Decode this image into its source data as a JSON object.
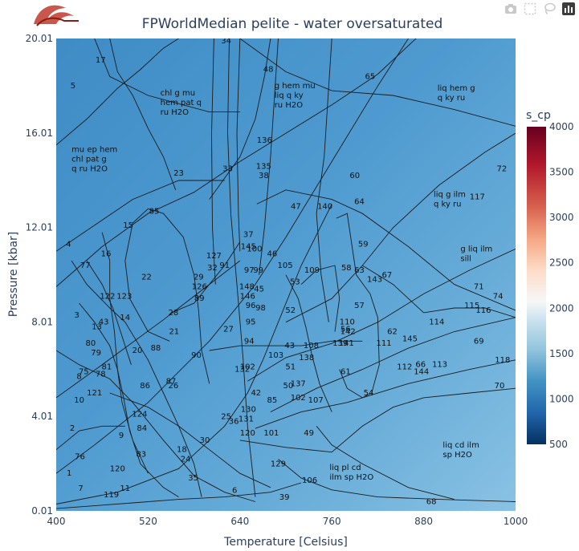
{
  "toolbar": {
    "icons": [
      "camera-icon",
      "box-select-icon",
      "lasso-icon",
      "bar-chart-logo-icon"
    ]
  },
  "chart_data": {
    "type": "heatmap",
    "title": "FPWorldMedian pelite - water oversaturated",
    "xlabel": "Temperature [Celsius]",
    "ylabel": "Pressure [kbar]",
    "xlim": [
      400,
      1000
    ],
    "ylim": [
      0.01,
      20.01
    ],
    "xticks": [
      400,
      520,
      640,
      760,
      880,
      1000
    ],
    "xtick_labels": [
      "400",
      "520",
      "640",
      "760",
      "880",
      "1000"
    ],
    "yticks": [
      0.01,
      4.01,
      8.01,
      12.01,
      16.01,
      20.01
    ],
    "ytick_labels": [
      "0.01",
      "4.01",
      "8.01",
      "12.01",
      "16.01",
      "20.01"
    ],
    "colorbar": {
      "title": "s_cp",
      "range": [
        500,
        4000
      ],
      "ticks": [
        500,
        1000,
        1500,
        2000,
        2500,
        3000,
        3500,
        4000
      ],
      "colorscale": [
        "#053061",
        "#2166ac",
        "#4393c3",
        "#92c5de",
        "#d1e5f0",
        "#f7f7f7",
        "#fddbc7",
        "#f4a582",
        "#d6604d",
        "#b2182b",
        "#67001f"
      ]
    },
    "grid": false,
    "field_value_range": [
      1400,
      1750
    ],
    "assemblage_labels": [
      {
        "text": "chl g mu\nhem pat q\nru H2O",
        "x": 536,
        "y": 17.6
      },
      {
        "text": "g hem mu\nliq q ky\nru H2O",
        "x": 685,
        "y": 17.9
      },
      {
        "text": "liq hem g\nq ky ru",
        "x": 898,
        "y": 17.8
      },
      {
        "text": "mu ep hem\nchl pat g\nq ru H2O",
        "x": 420,
        "y": 15.2
      },
      {
        "text": "liq g ilm\nq ky ru",
        "x": 893,
        "y": 13.3
      },
      {
        "text": "g liq ilm\nsill",
        "x": 928,
        "y": 11.0
      },
      {
        "text": "liq cd ilm\nsp H2O",
        "x": 905,
        "y": 2.7
      },
      {
        "text": "liq pl cd\nilm sp H2O",
        "x": 757,
        "y": 1.75
      }
    ],
    "field_numbers": [
      {
        "n": "34",
        "x": 622,
        "y": 19.9
      },
      {
        "n": "17",
        "x": 458,
        "y": 19.1
      },
      {
        "n": "5",
        "x": 422,
        "y": 18.0
      },
      {
        "n": "48",
        "x": 677,
        "y": 18.7
      },
      {
        "n": "65",
        "x": 810,
        "y": 18.4
      },
      {
        "n": "136",
        "x": 672,
        "y": 15.7
      },
      {
        "n": "23",
        "x": 560,
        "y": 14.3
      },
      {
        "n": "33",
        "x": 624,
        "y": 14.5
      },
      {
        "n": "135",
        "x": 671,
        "y": 14.6
      },
      {
        "n": "38",
        "x": 671,
        "y": 14.2
      },
      {
        "n": "60",
        "x": 790,
        "y": 14.2
      },
      {
        "n": "72",
        "x": 982,
        "y": 14.5
      },
      {
        "n": "47",
        "x": 713,
        "y": 12.9
      },
      {
        "n": "140",
        "x": 751,
        "y": 12.9
      },
      {
        "n": "64",
        "x": 796,
        "y": 13.1
      },
      {
        "n": "85",
        "x": 528,
        "y": 12.7
      },
      {
        "n": "15",
        "x": 494,
        "y": 12.1
      },
      {
        "n": "117",
        "x": 950,
        "y": 13.3
      },
      {
        "n": "4",
        "x": 416,
        "y": 11.3
      },
      {
        "n": "37",
        "x": 651,
        "y": 11.7
      },
      {
        "n": "16",
        "x": 465,
        "y": 10.9
      },
      {
        "n": "145",
        "x": 651,
        "y": 11.2
      },
      {
        "n": "100",
        "x": 659,
        "y": 11.1
      },
      {
        "n": "46",
        "x": 682,
        "y": 10.9
      },
      {
        "n": "59",
        "x": 801,
        "y": 11.3
      },
      {
        "n": "77",
        "x": 438,
        "y": 10.4
      },
      {
        "n": "127",
        "x": 606,
        "y": 10.8
      },
      {
        "n": "91",
        "x": 620,
        "y": 10.4
      },
      {
        "n": "105",
        "x": 699,
        "y": 10.4
      },
      {
        "n": "32",
        "x": 604,
        "y": 10.3
      },
      {
        "n": "97",
        "x": 652,
        "y": 10.2
      },
      {
        "n": "99",
        "x": 664,
        "y": 10.2
      },
      {
        "n": "109",
        "x": 734,
        "y": 10.2
      },
      {
        "n": "58",
        "x": 779,
        "y": 10.3
      },
      {
        "n": "63",
        "x": 796,
        "y": 10.2
      },
      {
        "n": "67",
        "x": 832,
        "y": 10.0
      },
      {
        "n": "22",
        "x": 518,
        "y": 9.9
      },
      {
        "n": "29",
        "x": 586,
        "y": 9.9
      },
      {
        "n": "53",
        "x": 712,
        "y": 9.7
      },
      {
        "n": "143",
        "x": 816,
        "y": 9.8
      },
      {
        "n": "148",
        "x": 649,
        "y": 9.5
      },
      {
        "n": "45",
        "x": 665,
        "y": 9.4
      },
      {
        "n": "126",
        "x": 587,
        "y": 9.5
      },
      {
        "n": "71",
        "x": 952,
        "y": 9.5
      },
      {
        "n": "122",
        "x": 467,
        "y": 9.1
      },
      {
        "n": "123",
        "x": 489,
        "y": 9.1
      },
      {
        "n": "146",
        "x": 650,
        "y": 9.1
      },
      {
        "n": "89",
        "x": 587,
        "y": 9.0
      },
      {
        "n": "57",
        "x": 796,
        "y": 8.7
      },
      {
        "n": "96",
        "x": 654,
        "y": 8.7
      },
      {
        "n": "98",
        "x": 667,
        "y": 8.6
      },
      {
        "n": "52",
        "x": 706,
        "y": 8.5
      },
      {
        "n": "115",
        "x": 943,
        "y": 8.7
      },
      {
        "n": "116",
        "x": 958,
        "y": 8.5
      },
      {
        "n": "74",
        "x": 977,
        "y": 9.1
      },
      {
        "n": "3",
        "x": 427,
        "y": 8.3
      },
      {
        "n": "28",
        "x": 553,
        "y": 8.4
      },
      {
        "n": "14",
        "x": 490,
        "y": 8.2
      },
      {
        "n": "43",
        "x": 462,
        "y": 8.0
      },
      {
        "n": "110",
        "x": 780,
        "y": 8.0
      },
      {
        "n": "114",
        "x": 897,
        "y": 8.0
      },
      {
        "n": "95",
        "x": 654,
        "y": 8.0
      },
      {
        "n": "13",
        "x": 453,
        "y": 7.8
      },
      {
        "n": "21",
        "x": 554,
        "y": 7.6
      },
      {
        "n": "27",
        "x": 625,
        "y": 7.7
      },
      {
        "n": "56",
        "x": 778,
        "y": 7.7
      },
      {
        "n": "142",
        "x": 781,
        "y": 7.6
      },
      {
        "n": "62",
        "x": 839,
        "y": 7.6
      },
      {
        "n": "94",
        "x": 652,
        "y": 7.2
      },
      {
        "n": "69",
        "x": 952,
        "y": 7.2
      },
      {
        "n": "43",
        "x": 705,
        "y": 7.0
      },
      {
        "n": "108",
        "x": 733,
        "y": 7.0
      },
      {
        "n": "139",
        "x": 771,
        "y": 7.1
      },
      {
        "n": "141",
        "x": 779,
        "y": 7.1
      },
      {
        "n": "111",
        "x": 828,
        "y": 7.1
      },
      {
        "n": "145",
        "x": 862,
        "y": 7.3
      },
      {
        "n": "80",
        "x": 445,
        "y": 7.1
      },
      {
        "n": "88",
        "x": 530,
        "y": 6.9
      },
      {
        "n": "20",
        "x": 506,
        "y": 6.8
      },
      {
        "n": "90",
        "x": 583,
        "y": 6.6
      },
      {
        "n": "103",
        "x": 687,
        "y": 6.6
      },
      {
        "n": "138",
        "x": 727,
        "y": 6.5
      },
      {
        "n": "79",
        "x": 452,
        "y": 6.7
      },
      {
        "n": "81",
        "x": 466,
        "y": 6.1
      },
      {
        "n": "66",
        "x": 876,
        "y": 6.2
      },
      {
        "n": "113",
        "x": 901,
        "y": 6.2
      },
      {
        "n": "118",
        "x": 983,
        "y": 6.4
      },
      {
        "n": "112",
        "x": 855,
        "y": 6.1
      },
      {
        "n": "144",
        "x": 877,
        "y": 5.9
      },
      {
        "n": "51",
        "x": 706,
        "y": 6.1
      },
      {
        "n": "78",
        "x": 458,
        "y": 5.8
      },
      {
        "n": "75",
        "x": 436,
        "y": 5.9
      },
      {
        "n": "8",
        "x": 430,
        "y": 5.7
      },
      {
        "n": "102",
        "x": 650,
        "y": 6.1
      },
      {
        "n": "132",
        "x": 643,
        "y": 6.0
      },
      {
        "n": "61",
        "x": 778,
        "y": 5.9
      },
      {
        "n": "86",
        "x": 516,
        "y": 5.3
      },
      {
        "n": "87",
        "x": 550,
        "y": 5.5
      },
      {
        "n": "26",
        "x": 553,
        "y": 5.3
      },
      {
        "n": "137",
        "x": 716,
        "y": 5.4
      },
      {
        "n": "70",
        "x": 979,
        "y": 5.3
      },
      {
        "n": "50",
        "x": 703,
        "y": 5.3
      },
      {
        "n": "121",
        "x": 450,
        "y": 5.0
      },
      {
        "n": "42",
        "x": 661,
        "y": 5.0
      },
      {
        "n": "54",
        "x": 808,
        "y": 5.0
      },
      {
        "n": "107",
        "x": 739,
        "y": 4.7
      },
      {
        "n": "10",
        "x": 430,
        "y": 4.7
      },
      {
        "n": "102",
        "x": 716,
        "y": 4.8
      },
      {
        "n": "130",
        "x": 651,
        "y": 4.3
      },
      {
        "n": "85",
        "x": 682,
        "y": 4.7
      },
      {
        "n": "124",
        "x": 509,
        "y": 4.1
      },
      {
        "n": "25",
        "x": 622,
        "y": 4.0
      },
      {
        "n": "131",
        "x": 648,
        "y": 3.9
      },
      {
        "n": "36",
        "x": 632,
        "y": 3.8
      },
      {
        "n": "2",
        "x": 421,
        "y": 3.5
      },
      {
        "n": "84",
        "x": 512,
        "y": 3.5
      },
      {
        "n": "120",
        "x": 650,
        "y": 3.3
      },
      {
        "n": "101",
        "x": 681,
        "y": 3.3
      },
      {
        "n": "49",
        "x": 730,
        "y": 3.3
      },
      {
        "n": "9",
        "x": 485,
        "y": 3.2
      },
      {
        "n": "30",
        "x": 594,
        "y": 3.0
      },
      {
        "n": "18",
        "x": 564,
        "y": 2.6
      },
      {
        "n": "24",
        "x": 569,
        "y": 2.2
      },
      {
        "n": "83",
        "x": 511,
        "y": 2.4
      },
      {
        "n": "76",
        "x": 431,
        "y": 2.3
      },
      {
        "n": "129",
        "x": 690,
        "y": 2.0
      },
      {
        "n": "120",
        "x": 480,
        "y": 1.8
      },
      {
        "n": "1",
        "x": 417,
        "y": 1.6
      },
      {
        "n": "35",
        "x": 579,
        "y": 1.4
      },
      {
        "n": "106",
        "x": 731,
        "y": 1.3
      },
      {
        "n": "7",
        "x": 432,
        "y": 0.96
      },
      {
        "n": "11",
        "x": 490,
        "y": 0.96
      },
      {
        "n": "6",
        "x": 633,
        "y": 0.87
      },
      {
        "n": "119",
        "x": 472,
        "y": 0.69
      },
      {
        "n": "39",
        "x": 698,
        "y": 0.58
      },
      {
        "n": "68",
        "x": 890,
        "y": 0.4
      }
    ]
  }
}
